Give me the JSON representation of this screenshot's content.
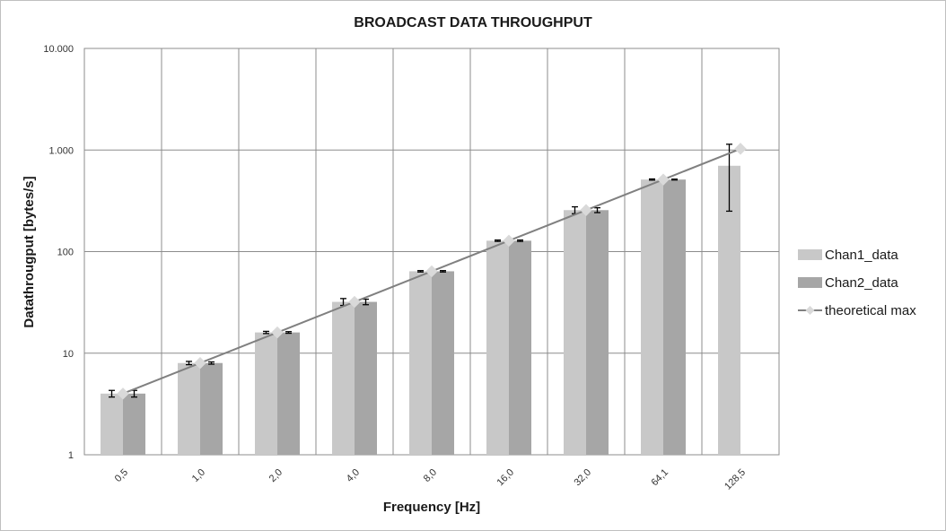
{
  "chart_data": {
    "type": "bar",
    "title": "BROADCAST DATA THROUGHPUT",
    "xlabel": "Frequency [Hz]",
    "ylabel": "Datathrougput [bytes/s]",
    "yscale": "log",
    "ylim": [
      1,
      10000
    ],
    "yticks": [
      {
        "value": 1,
        "label": "1"
      },
      {
        "value": 10,
        "label": "10"
      },
      {
        "value": 100,
        "label": "100"
      },
      {
        "value": 1000,
        "label": "1.000"
      },
      {
        "value": 10000,
        "label": "10.000"
      }
    ],
    "categories": [
      "0,5",
      "1,0",
      "2,0",
      "4,0",
      "8,0",
      "16,0",
      "32,0",
      "64,1",
      "128,5"
    ],
    "grid": true,
    "legend_position": "right",
    "series": [
      {
        "name": "Chan1_data",
        "kind": "bar",
        "color": "#c8c8c8",
        "values": [
          4,
          8,
          16,
          32,
          64,
          128,
          256,
          512,
          700
        ],
        "error_low": [
          3.7,
          7.7,
          15.6,
          29.5,
          63,
          126,
          236,
          505,
          250
        ],
        "error_high": [
          4.3,
          8.3,
          16.4,
          34.5,
          65,
          130,
          276,
          519,
          1140
        ]
      },
      {
        "name": "Chan2_data",
        "kind": "bar",
        "color": "#a6a6a6",
        "values": [
          4,
          8,
          16,
          32,
          64,
          128,
          256,
          512,
          null
        ],
        "error_low": [
          3.7,
          7.8,
          15.7,
          30,
          63,
          126,
          242,
          507,
          null
        ],
        "error_high": [
          4.3,
          8.2,
          16.3,
          34,
          65,
          130,
          270,
          517,
          null
        ]
      },
      {
        "name": "theoretical max",
        "kind": "line",
        "color": "#808080",
        "marker_color": "#d9d9d9",
        "values": [
          4,
          8,
          16,
          32,
          64,
          128,
          256,
          512,
          1028
        ]
      }
    ]
  }
}
